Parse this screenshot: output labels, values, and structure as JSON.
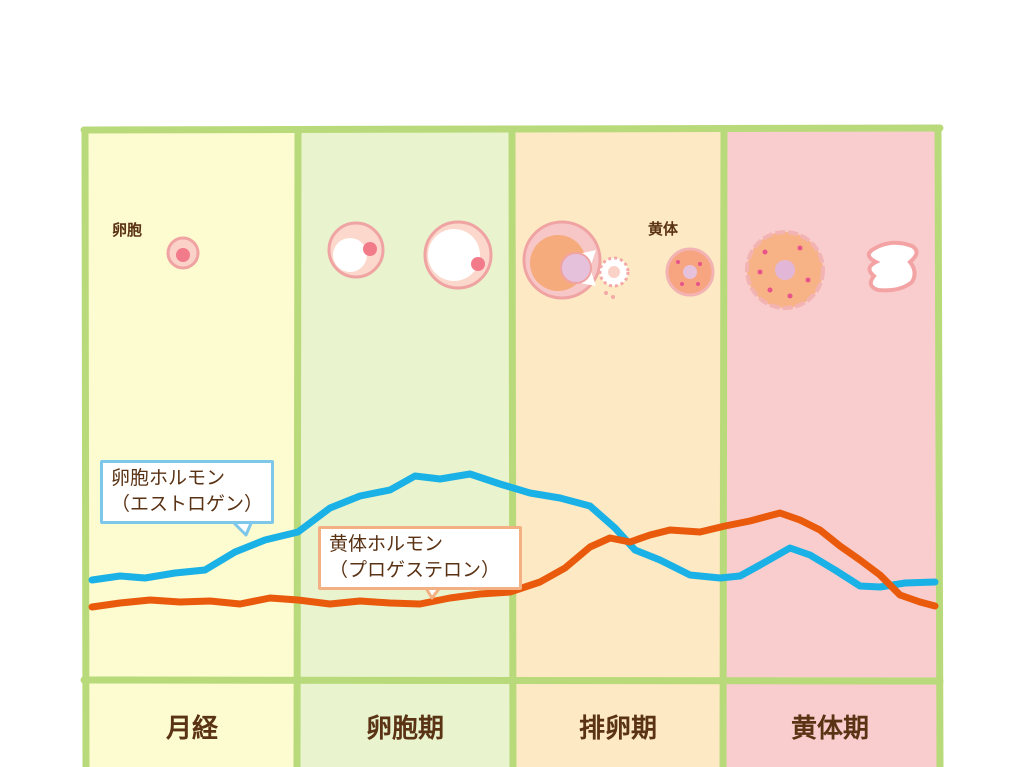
{
  "labels": {
    "follicle": "卵胞",
    "corpus_luteum": "黄体"
  },
  "phases": [
    {
      "name": "月経",
      "color": "#fdfbd0"
    },
    {
      "name": "卵胞期",
      "color": "#e9f3ce"
    },
    {
      "name": "排卵期",
      "color": "#fde9c3"
    },
    {
      "name": "黄体期",
      "color": "#f9cdcd"
    }
  ],
  "hormones": {
    "estrogen": {
      "line1": "卵胞ホルモン",
      "line2": "（エストロゲン）",
      "color": "#19b1e6"
    },
    "progesterone": {
      "line1": "黄体ホルモン",
      "line2": "（プロゲステロン）",
      "color": "#ea5a0c"
    }
  },
  "border_color": "#b9da7a",
  "icons": [
    "small-follicle-icon",
    "growing-follicle-icon",
    "large-follicle-icon",
    "ovulation-icon",
    "released-egg-icon",
    "corpus-luteum-icon",
    "mature-corpus-luteum-icon",
    "degenerated-corpus-luteum-icon"
  ]
}
